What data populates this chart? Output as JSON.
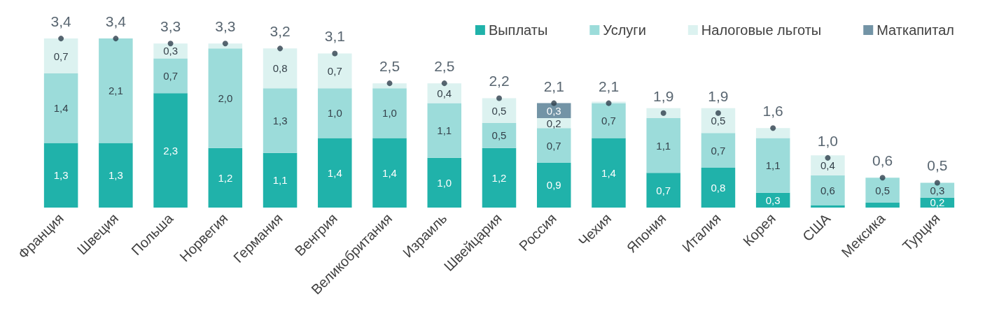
{
  "chart_data": {
    "type": "bar",
    "stacked": true,
    "legend": "top right",
    "categories": [
      "Франция",
      "Швеция",
      "Польша",
      "Норвегия",
      "Германия",
      "Венгрия",
      "Великобритания",
      "Израиль",
      "Швейцария",
      "Россия",
      "Чехия",
      "Япония",
      "Италия",
      "Корея",
      "США",
      "Мексика",
      "Турция"
    ],
    "series": [
      {
        "name": "Выплаты",
        "color": "#20b2aa",
        "values": [
          1.3,
          1.3,
          2.3,
          1.2,
          1.1,
          1.4,
          1.4,
          1.0,
          1.2,
          0.9,
          1.4,
          0.7,
          0.8,
          0.3,
          0.05,
          0.1,
          0.2
        ],
        "value_labels": [
          "1,3",
          "1,3",
          "2,3",
          "1,2",
          "1,1",
          "1,4",
          "1,4",
          "1,0",
          "1,2",
          "0,9",
          "1,4",
          "0,7",
          "0,8",
          "0,3",
          null,
          null,
          "0,2"
        ]
      },
      {
        "name": "Услуги",
        "color": "#9cdcda",
        "values": [
          1.4,
          2.1,
          0.7,
          2.0,
          1.3,
          1.0,
          1.0,
          1.1,
          0.5,
          0.7,
          0.7,
          1.1,
          0.7,
          1.1,
          0.6,
          0.5,
          0.3
        ],
        "value_labels": [
          "1,4",
          "2,1",
          "0,7",
          "2,0",
          "1,3",
          "1,0",
          "1,0",
          "1,1",
          "0,5",
          "0,7",
          "0,7",
          "1,1",
          "0,7",
          "1,1",
          "0,6",
          "0,5",
          "0,3"
        ]
      },
      {
        "name": "Налоговые льготы",
        "color": "#dcf2f0",
        "values": [
          0.7,
          null,
          0.3,
          0.1,
          0.8,
          0.7,
          0.1,
          0.4,
          0.5,
          0.2,
          0.03,
          0.2,
          0.5,
          0.2,
          0.4,
          null,
          null
        ],
        "value_labels": [
          "0,7",
          null,
          "0,3",
          null,
          "0,8",
          "0,7",
          null,
          "0,4",
          "0,5",
          "0,2",
          null,
          null,
          "0,5",
          null,
          "0,4",
          null,
          null
        ]
      },
      {
        "name": "Маткапитал",
        "color": "#7394a6",
        "values": [
          null,
          null,
          null,
          null,
          null,
          null,
          null,
          null,
          null,
          0.3,
          null,
          null,
          null,
          null,
          null,
          null,
          null
        ],
        "value_labels": [
          null,
          null,
          null,
          null,
          null,
          null,
          null,
          null,
          null,
          "0,3",
          null,
          null,
          null,
          null,
          null,
          null,
          null
        ]
      },
      {
        "type": "scatter",
        "color": "#2e3f4c",
        "values": [
          3.4,
          3.4,
          3.3,
          3.3,
          3.2,
          3.1,
          2.5,
          2.5,
          2.2,
          2.1,
          2.1,
          1.9,
          1.9,
          1.6,
          1.0,
          0.6,
          0.5
        ]
      }
    ],
    "totals": [
      "3,4",
      "3,4",
      "3,3",
      "3,3",
      "3,2",
      "3,1",
      "2,5",
      "2,5",
      "2,2",
      "2,1",
      "2,1",
      "1,9",
      "1,9",
      "1,6",
      "1,0",
      "0,6",
      "0,5"
    ]
  }
}
